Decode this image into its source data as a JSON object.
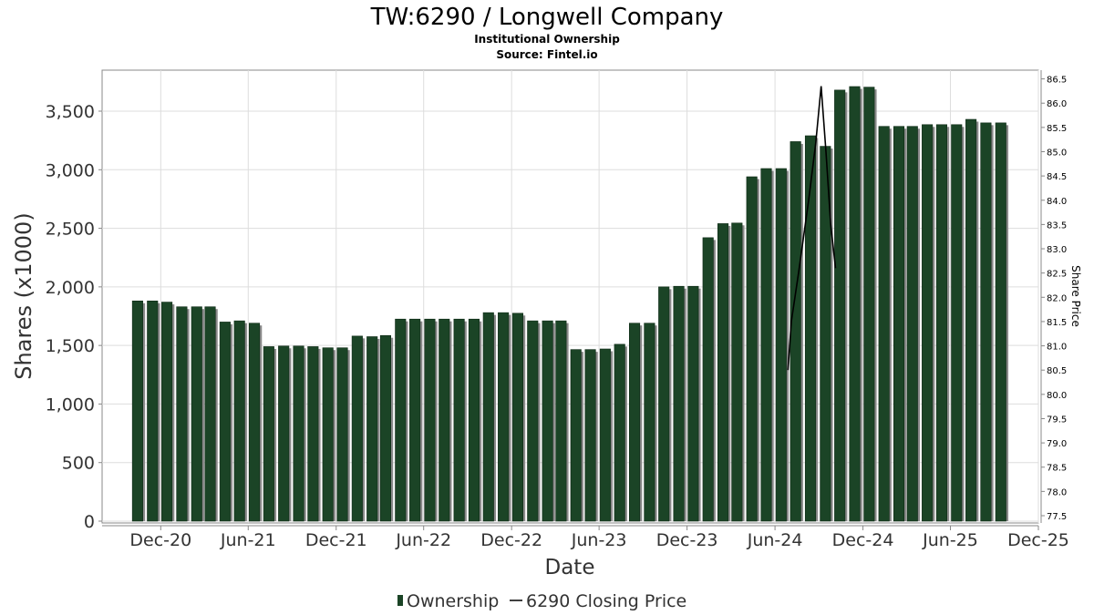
{
  "chart_data": {
    "type": "bar",
    "title": "TW:6290 / Longwell Company",
    "subtitle": "Institutional Ownership",
    "source": "Source: Fintel.io",
    "xlabel": "Date",
    "ylabel": "Shares (x1000)",
    "y2label": "Share Price",
    "ylim": [
      0,
      3850
    ],
    "y2lim": [
      77.35,
      86.68
    ],
    "xlim": [
      "2020-08-01",
      "2025-12-01"
    ],
    "yticks": [
      "0",
      "500",
      "1,000",
      "1,500",
      "2,000",
      "2,500",
      "3,000",
      "3,500"
    ],
    "y2ticks": [
      "77.5",
      "78.0",
      "78.5",
      "79.0",
      "79.5",
      "80.0",
      "80.5",
      "81.0",
      "81.5",
      "82.0",
      "82.5",
      "83.0",
      "83.5",
      "84.0",
      "84.5",
      "85.0",
      "85.5",
      "86.0",
      "86.5"
    ],
    "xticks": [
      {
        "label": "Dec-20",
        "date": "2020-12-01"
      },
      {
        "label": "Jun-21",
        "date": "2021-06-01"
      },
      {
        "label": "Dec-21",
        "date": "2021-12-01"
      },
      {
        "label": "Jun-22",
        "date": "2022-06-01"
      },
      {
        "label": "Dec-22",
        "date": "2022-12-01"
      },
      {
        "label": "Jun-23",
        "date": "2023-06-01"
      },
      {
        "label": "Dec-23",
        "date": "2023-12-01"
      },
      {
        "label": "Jun-24",
        "date": "2024-06-01"
      },
      {
        "label": "Dec-24",
        "date": "2024-12-01"
      },
      {
        "label": "Jun-25",
        "date": "2025-06-01"
      },
      {
        "label": "Dec-25",
        "date": "2025-12-01"
      }
    ],
    "grid": true,
    "legend_position": "bottom",
    "series": [
      {
        "name": "Ownership",
        "type": "bar",
        "color": "#1b4426",
        "dates": [
          "2020-10-01",
          "2020-11-01",
          "2020-12-01",
          "2021-01-01",
          "2021-02-01",
          "2021-03-01",
          "2021-04-01",
          "2021-05-01",
          "2021-06-01",
          "2021-07-01",
          "2021-08-01",
          "2021-09-01",
          "2021-10-01",
          "2021-11-01",
          "2021-12-01",
          "2022-01-01",
          "2022-02-01",
          "2022-03-01",
          "2022-04-01",
          "2022-05-01",
          "2022-06-01",
          "2022-07-01",
          "2022-08-01",
          "2022-09-01",
          "2022-10-01",
          "2022-11-01",
          "2022-12-01",
          "2023-01-01",
          "2023-02-01",
          "2023-03-01",
          "2023-04-01",
          "2023-05-01",
          "2023-06-01",
          "2023-07-01",
          "2023-08-01",
          "2023-09-01",
          "2023-10-01",
          "2023-11-01",
          "2023-12-01",
          "2024-01-01",
          "2024-02-01",
          "2024-03-01",
          "2024-04-01",
          "2024-05-01",
          "2024-06-01",
          "2024-07-01",
          "2024-08-01",
          "2024-09-01",
          "2024-10-01",
          "2024-11-01",
          "2024-12-01",
          "2025-01-01",
          "2025-02-01",
          "2025-03-01",
          "2025-04-01",
          "2025-05-01",
          "2025-06-01",
          "2025-07-01",
          "2025-08-01",
          "2025-09-01"
        ],
        "values": [
          1880,
          1880,
          1870,
          1830,
          1830,
          1830,
          1700,
          1710,
          1690,
          1490,
          1495,
          1495,
          1490,
          1480,
          1480,
          1580,
          1575,
          1585,
          1725,
          1725,
          1725,
          1725,
          1725,
          1725,
          1780,
          1780,
          1775,
          1710,
          1710,
          1710,
          1465,
          1465,
          1470,
          1510,
          1690,
          1690,
          2000,
          2005,
          2005,
          2420,
          2540,
          2545,
          2940,
          3010,
          3010,
          3240,
          3290,
          3200,
          3680,
          3710,
          3705,
          3370,
          3370,
          3370,
          3385,
          3385,
          3385,
          3430,
          3400,
          3400
        ]
      },
      {
        "name": "6290 Closing Price",
        "type": "line",
        "color": "#000000",
        "dates": [
          "2024-06-28",
          "2024-07-05",
          "2024-07-20",
          "2024-08-10",
          "2024-08-25",
          "2024-09-05",
          "2024-09-15",
          "2024-09-25",
          "2024-10-05"
        ],
        "values": [
          80.5,
          81.5,
          82.5,
          84.0,
          85.2,
          86.35,
          85.0,
          83.5,
          82.6
        ]
      }
    ]
  }
}
